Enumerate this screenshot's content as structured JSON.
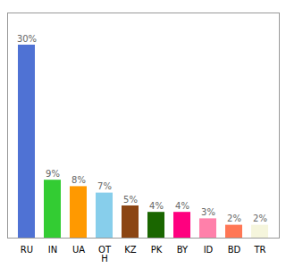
{
  "chart_data": {
    "type": "bar",
    "categories": [
      "RU",
      "IN",
      "UA",
      "OT\nH",
      "KZ",
      "PK",
      "BY",
      "ID",
      "BD",
      "TR"
    ],
    "values": [
      30,
      9,
      8,
      7,
      5,
      4,
      4,
      3,
      2,
      2
    ],
    "value_labels": [
      "30%",
      "9%",
      "8%",
      "7%",
      "5%",
      "4%",
      "4%",
      "3%",
      "2%",
      "2%"
    ],
    "colors": [
      "#4f72d4",
      "#33cc33",
      "#ff9900",
      "#87ceeb",
      "#8B4513",
      "#1a6600",
      "#ff007f",
      "#ff80aa",
      "#ff7755",
      "#f5f5dc"
    ],
    "ylim": [
      0,
      35
    ],
    "data_labels": true,
    "tick_labels": "x",
    "grid": false
  }
}
